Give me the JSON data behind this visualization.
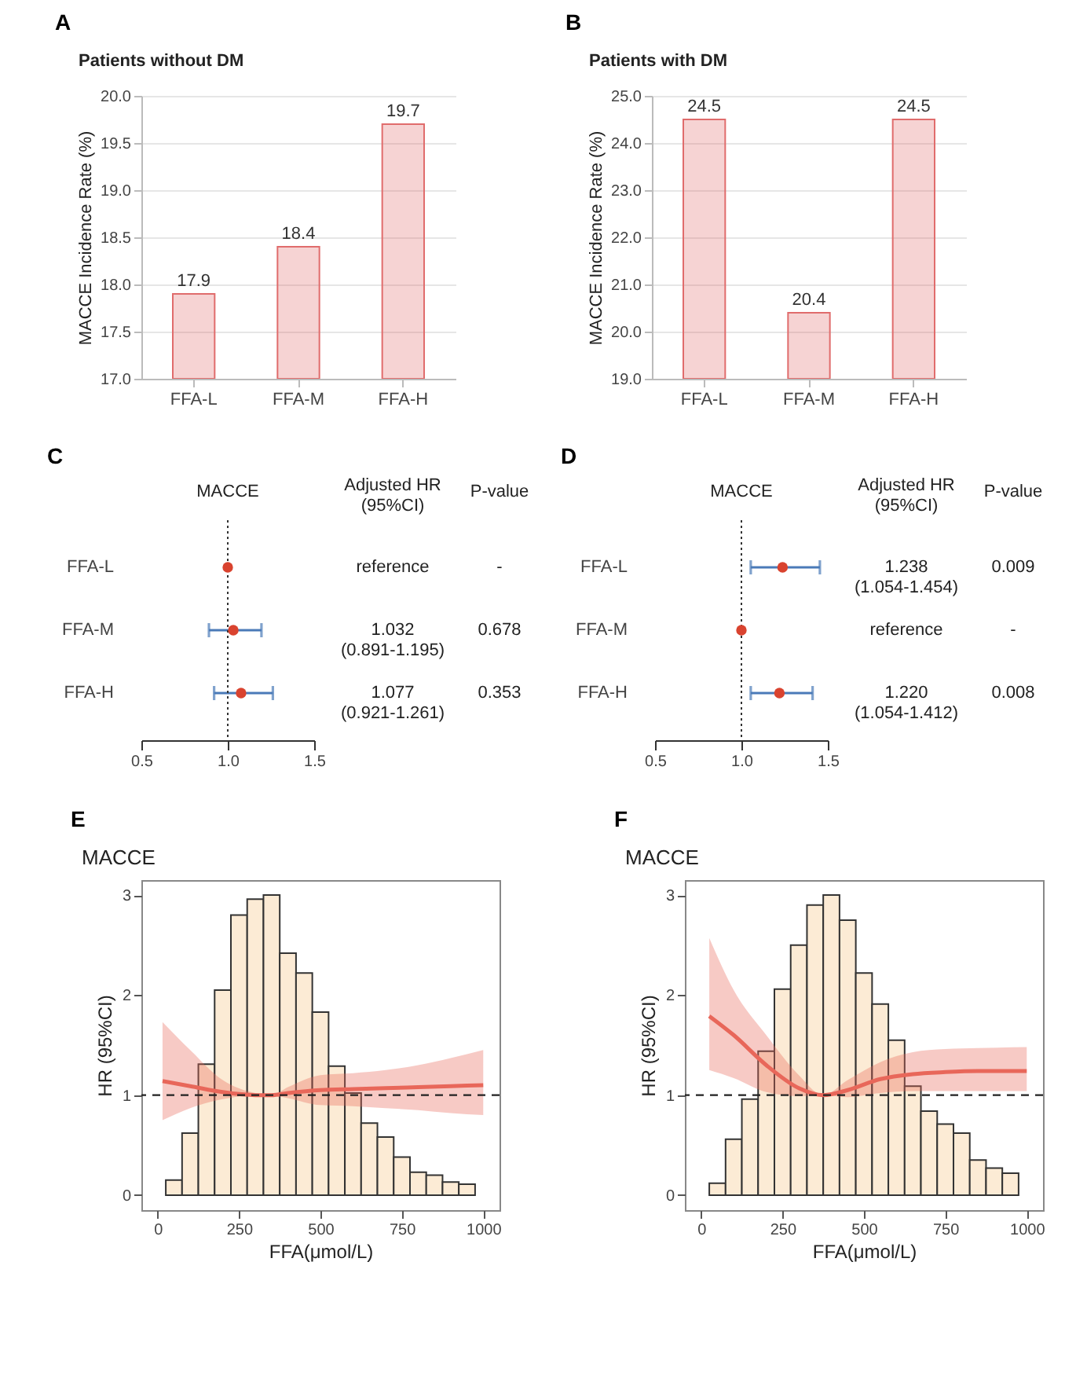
{
  "chart_data": [
    {
      "type": "bar",
      "title": "Patients without DM",
      "ylabel": "MACCE Incidence Rate (%)",
      "categories": [
        "FFA-L",
        "FFA-M",
        "FFA-H"
      ],
      "values": [
        17.9,
        18.4,
        19.7
      ],
      "color": "#e06c6c",
      "data_labels": true,
      "ylim": [
        17,
        20
      ],
      "yticks": [
        {
          "value": 17,
          "label": "17.0"
        },
        17.5,
        {
          "value": 18,
          "label": "18.0"
        },
        18.5,
        {
          "value": 19,
          "label": "19.0"
        },
        19.5,
        {
          "value": 20,
          "label": "20.0"
        }
      ],
      "grid": "y",
      "annotations": [
        "A"
      ]
    },
    {
      "type": "bar",
      "title": "Patients with DM",
      "ylabel": "MACCE Incidence Rate (%)",
      "categories": [
        "FFA-L",
        "FFA-M",
        "FFA-H"
      ],
      "values": [
        24.5,
        20.4,
        24.5
      ],
      "color": "#e06c6c",
      "data_labels": true,
      "ylim": [
        19,
        25
      ],
      "yticks": [
        {
          "value": 19,
          "label": "19.0"
        },
        {
          "value": 20,
          "label": "20.0"
        },
        {
          "value": 21,
          "label": "21.0"
        },
        {
          "value": 22,
          "label": "22.0"
        },
        {
          "value": 23,
          "label": "23.0"
        },
        {
          "value": 24,
          "label": "24.0"
        },
        {
          "value": 25,
          "label": "25.0"
        }
      ],
      "grid": "y",
      "annotations": [
        "B"
      ]
    },
    {
      "type": "scatter",
      "orientation": "horizontal",
      "title": "MACCE",
      "categories": [
        "FFA-L",
        "FFA-M",
        "FFA-H"
      ],
      "values": [
        1,
        1.032,
        1.077
      ],
      "errors": [
        null,
        [
          0.891,
          1.195
        ],
        [
          0.921,
          1.261
        ]
      ],
      "color": "#d9432f",
      "xlim": [
        0.5,
        1.5
      ],
      "xticks": [
        0.5,
        {
          "value": 1,
          "label": "1.0"
        },
        1.5
      ],
      "ref_lines": [
        {
          "axis": "x",
          "value": 1,
          "line_style": "dotted"
        }
      ],
      "annotations": [
        "C",
        "Adjusted HR\n(95%CI)",
        "P-value",
        "reference",
        "1.032\n(0.891-1.195)",
        "1.077\n(0.921-1.261)",
        "-",
        "0.678",
        "0.353"
      ]
    },
    {
      "type": "scatter",
      "orientation": "horizontal",
      "title": "MACCE",
      "categories": [
        "FFA-L",
        "FFA-M",
        "FFA-H"
      ],
      "values": [
        1.238,
        1,
        1.22
      ],
      "errors": [
        [
          1.054,
          1.454
        ],
        null,
        [
          1.054,
          1.412
        ]
      ],
      "color": "#d9432f",
      "xlim": [
        0.5,
        1.5
      ],
      "xticks": [
        0.5,
        {
          "value": 1,
          "label": "1.0"
        },
        1.5
      ],
      "ref_lines": [
        {
          "axis": "x",
          "value": 1,
          "line_style": "dotted"
        }
      ],
      "annotations": [
        "D",
        "Adjusted HR\n(95%CI)",
        "P-value",
        "1.238\n(1.054-1.454)",
        "reference",
        "1.220\n(1.054-1.412)",
        "0.009",
        "-",
        "0.008"
      ]
    },
    {
      "type": "histogram",
      "title": "MACCE",
      "xlabel": "FFA(μmol/L)",
      "ylabel": "HR (95%CI)",
      "bins": [
        25,
        75,
        125,
        175,
        225,
        275,
        325,
        375,
        425,
        475,
        525,
        575,
        625,
        675,
        725,
        775,
        825,
        875,
        925,
        975
      ],
      "values": [
        0.15,
        0.62,
        1.31,
        2.05,
        2.8,
        2.96,
        3.0,
        2.42,
        2.22,
        1.83,
        1.29,
        1.02,
        0.72,
        0.58,
        0.38,
        0.23,
        0.2,
        0.13,
        0.11
      ],
      "color": "#fcebd5",
      "series": [
        {
          "type": "line",
          "color": "#e8675a",
          "x": [
            15,
            100,
            200,
            300,
            350,
            400,
            500,
            600,
            700,
            800,
            900,
            1000
          ],
          "values": [
            1.14,
            1.09,
            1.03,
            1.0,
            1.0,
            1.02,
            1.05,
            1.06,
            1.07,
            1.08,
            1.09,
            1.1
          ],
          "lower": [
            0.75,
            0.87,
            0.96,
            1.0,
            1.0,
            0.97,
            0.9,
            0.89,
            0.87,
            0.85,
            0.82,
            0.8
          ],
          "upper": [
            1.73,
            1.45,
            1.15,
            1.02,
            1.0,
            1.08,
            1.2,
            1.22,
            1.25,
            1.3,
            1.37,
            1.45
          ]
        }
      ],
      "xlim": [
        -50,
        1050
      ],
      "xticks": [
        0,
        250,
        500,
        750,
        1000
      ],
      "ylim": [
        -0.15,
        3.15
      ],
      "yticks": [
        0,
        1,
        2,
        3
      ],
      "ref_lines": [
        {
          "axis": "y",
          "value": 1,
          "line_style": "dashed"
        }
      ],
      "annotations": [
        "E"
      ]
    },
    {
      "type": "histogram",
      "title": "MACCE",
      "xlabel": "FFA(μmol/L)",
      "ylabel": "HR (95%CI)",
      "bins": [
        25,
        75,
        125,
        175,
        225,
        275,
        325,
        375,
        425,
        475,
        525,
        575,
        625,
        675,
        725,
        775,
        825,
        875,
        925,
        975
      ],
      "values": [
        0.12,
        0.56,
        0.96,
        1.44,
        2.06,
        2.5,
        2.9,
        3.0,
        2.75,
        2.22,
        1.91,
        1.55,
        1.09,
        0.84,
        0.71,
        0.62,
        0.35,
        0.27,
        0.22
      ],
      "color": "#fcebd5",
      "series": [
        {
          "type": "line",
          "color": "#e8675a",
          "x": [
            25,
            100,
            200,
            300,
            375,
            450,
            550,
            650,
            750,
            850,
            1000
          ],
          "values": [
            1.79,
            1.6,
            1.3,
            1.07,
            1.0,
            1.05,
            1.16,
            1.21,
            1.23,
            1.24,
            1.24
          ],
          "lower": [
            1.25,
            1.17,
            1.03,
            0.99,
            1.0,
            0.98,
            1.02,
            1.04,
            1.04,
            1.04,
            1.04
          ],
          "upper": [
            2.57,
            2.05,
            1.6,
            1.2,
            1.0,
            1.15,
            1.33,
            1.43,
            1.46,
            1.47,
            1.48
          ]
        }
      ],
      "xlim": [
        -50,
        1050
      ],
      "xticks": [
        0,
        250,
        500,
        750,
        1000
      ],
      "ylim": [
        -0.15,
        3.15
      ],
      "yticks": [
        0,
        1,
        2,
        3
      ],
      "ref_lines": [
        {
          "axis": "y",
          "value": 1,
          "line_style": "dashed"
        }
      ],
      "annotations": [
        "F"
      ]
    }
  ]
}
